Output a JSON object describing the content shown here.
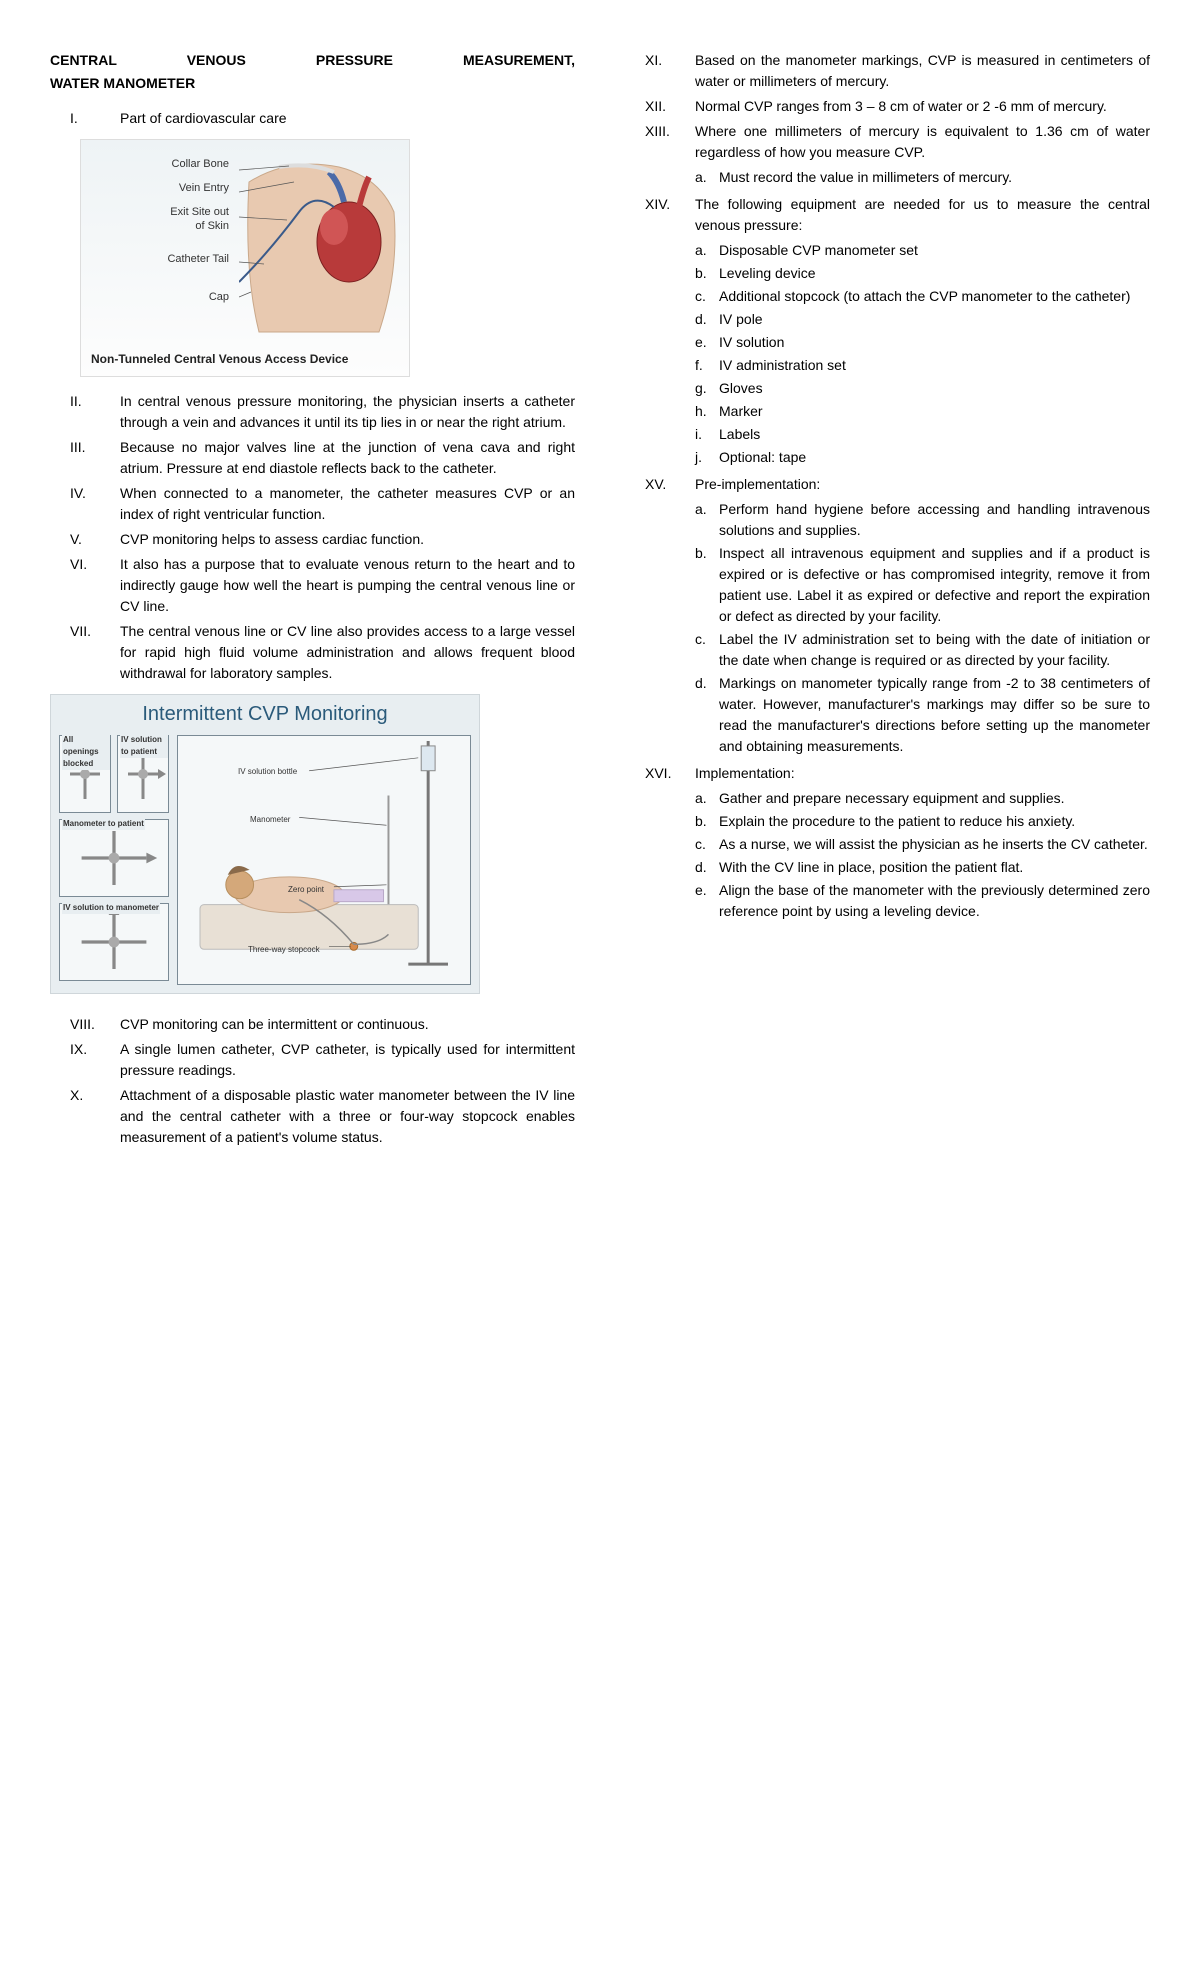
{
  "title_line1": "CENTRAL VENOUS PRESSURE MEASUREMENT,",
  "title_line2": "WATER MANOMETER",
  "fig1": {
    "labels": [
      "Collar Bone",
      "Vein Entry",
      "Exit Site out\nof Skin",
      "Catheter Tail",
      "Cap"
    ],
    "caption": "Non-Tunneled Central Venous Access Device",
    "colors": {
      "skin": "#e8c9b0",
      "heart": "#b83a3a",
      "vein": "#4a6aa8",
      "bg_top": "#eef3f5",
      "bg_bot": "#fdfdfd"
    }
  },
  "fig2": {
    "title": "Intermittent CVP Monitoring",
    "side_labels": [
      "All openings blocked",
      "IV solution to patient",
      "Manometer to patient",
      "IV solution to manometer"
    ],
    "main_labels": [
      "IV solution bottle",
      "Manometer",
      "Zero point",
      "Three-way stopcock"
    ],
    "colors": {
      "bg": "#e8eef1",
      "border": "#7a8a95",
      "title": "#2a5a7a"
    }
  },
  "left_items": [
    {
      "n": "I.",
      "t": "Part of cardiovascular care"
    },
    {
      "n": "II.",
      "t": "In central venous pressure monitoring, the physician inserts a catheter through a vein and advances it until its tip lies in or near the right atrium."
    },
    {
      "n": "III.",
      "t": "Because no major valves line at the junction of vena cava and right atrium. Pressure at end diastole reflects back to the catheter."
    },
    {
      "n": "IV.",
      "t": "When connected to a manometer, the catheter measures CVP or an index of right ventricular function."
    },
    {
      "n": "V.",
      "t": "CVP monitoring helps to assess cardiac function."
    },
    {
      "n": "VI.",
      "t": "It also has a purpose that to evaluate venous return to the heart and to indirectly gauge how well the heart is pumping the central venous line or CV line."
    },
    {
      "n": "VII.",
      "t": "The central venous line or CV line also provides access to a large vessel for rapid high fluid volume administration and allows frequent blood withdrawal for laboratory samples."
    },
    {
      "n": "VIII.",
      "t": "CVP monitoring can be intermittent or continuous."
    },
    {
      "n": "IX.",
      "t": "A single lumen catheter, CVP catheter, is typically used for intermittent pressure readings."
    },
    {
      "n": "X.",
      "t": "Attachment of a disposable plastic water manometer between the IV line and the central catheter with a three or four-way stopcock enables measurement of a patient's volume status."
    }
  ],
  "right_items": [
    {
      "n": "XI.",
      "t": "Based on the manometer markings, CVP is measured in centimeters of water or millimeters of mercury."
    },
    {
      "n": "XII.",
      "t": "Normal CVP ranges from 3 – 8 cm of water or 2 -6 mm of mercury."
    },
    {
      "n": "XIII.",
      "t": "Where one millimeters of mercury is equivalent to 1.36 cm of water regardless of how you measure CVP.",
      "sub": [
        {
          "a": "a.",
          "t": "Must record the value in millimeters of mercury."
        }
      ]
    },
    {
      "n": "XIV.",
      "t": "The following equipment are needed for us to measure the central venous pressure:",
      "sub": [
        {
          "a": "a.",
          "t": "Disposable CVP manometer set"
        },
        {
          "a": "b.",
          "t": "Leveling device"
        },
        {
          "a": "c.",
          "t": "Additional stopcock (to attach the CVP manometer to the catheter)"
        },
        {
          "a": "d.",
          "t": "IV pole"
        },
        {
          "a": "e.",
          "t": "IV solution"
        },
        {
          "a": "f.",
          "t": "IV administration set"
        },
        {
          "a": "g.",
          "t": "Gloves"
        },
        {
          "a": "h.",
          "t": "Marker"
        },
        {
          "a": "i.",
          "t": "Labels"
        },
        {
          "a": "j.",
          "t": "Optional: tape"
        }
      ]
    },
    {
      "n": "XV.",
      "t": "Pre-implementation:",
      "sub": [
        {
          "a": "a.",
          "t": "Perform hand hygiene before accessing and handling intravenous solutions and supplies."
        },
        {
          "a": "b.",
          "t": "Inspect all intravenous equipment and supplies and if a product is expired or is defective or has compromised integrity, remove it from patient use. Label it as expired or defective and report the expiration or defect as directed by your facility."
        },
        {
          "a": "c.",
          "t": "Label the IV administration set to being with the date of initiation or the date when change is required or as directed by your facility."
        },
        {
          "a": "d.",
          "t": "Markings on manometer typically range from -2 to 38 centimeters of water. However, manufacturer's markings may differ so be sure to read the manufacturer's directions before setting up the manometer and obtaining measurements."
        }
      ]
    },
    {
      "n": "XVI.",
      "t": "Implementation:",
      "sub": [
        {
          "a": "a.",
          "t": "Gather and prepare necessary equipment and supplies."
        },
        {
          "a": "b.",
          "t": "Explain the procedure to the patient to reduce his anxiety."
        },
        {
          "a": "c.",
          "t": "As a nurse, we will assist the physician as he inserts the CV catheter."
        },
        {
          "a": "d.",
          "t": "With the CV line in place, position the patient flat."
        },
        {
          "a": "e.",
          "t": "Align the base of the manometer with the previously determined zero reference point by using a leveling device."
        }
      ]
    }
  ]
}
